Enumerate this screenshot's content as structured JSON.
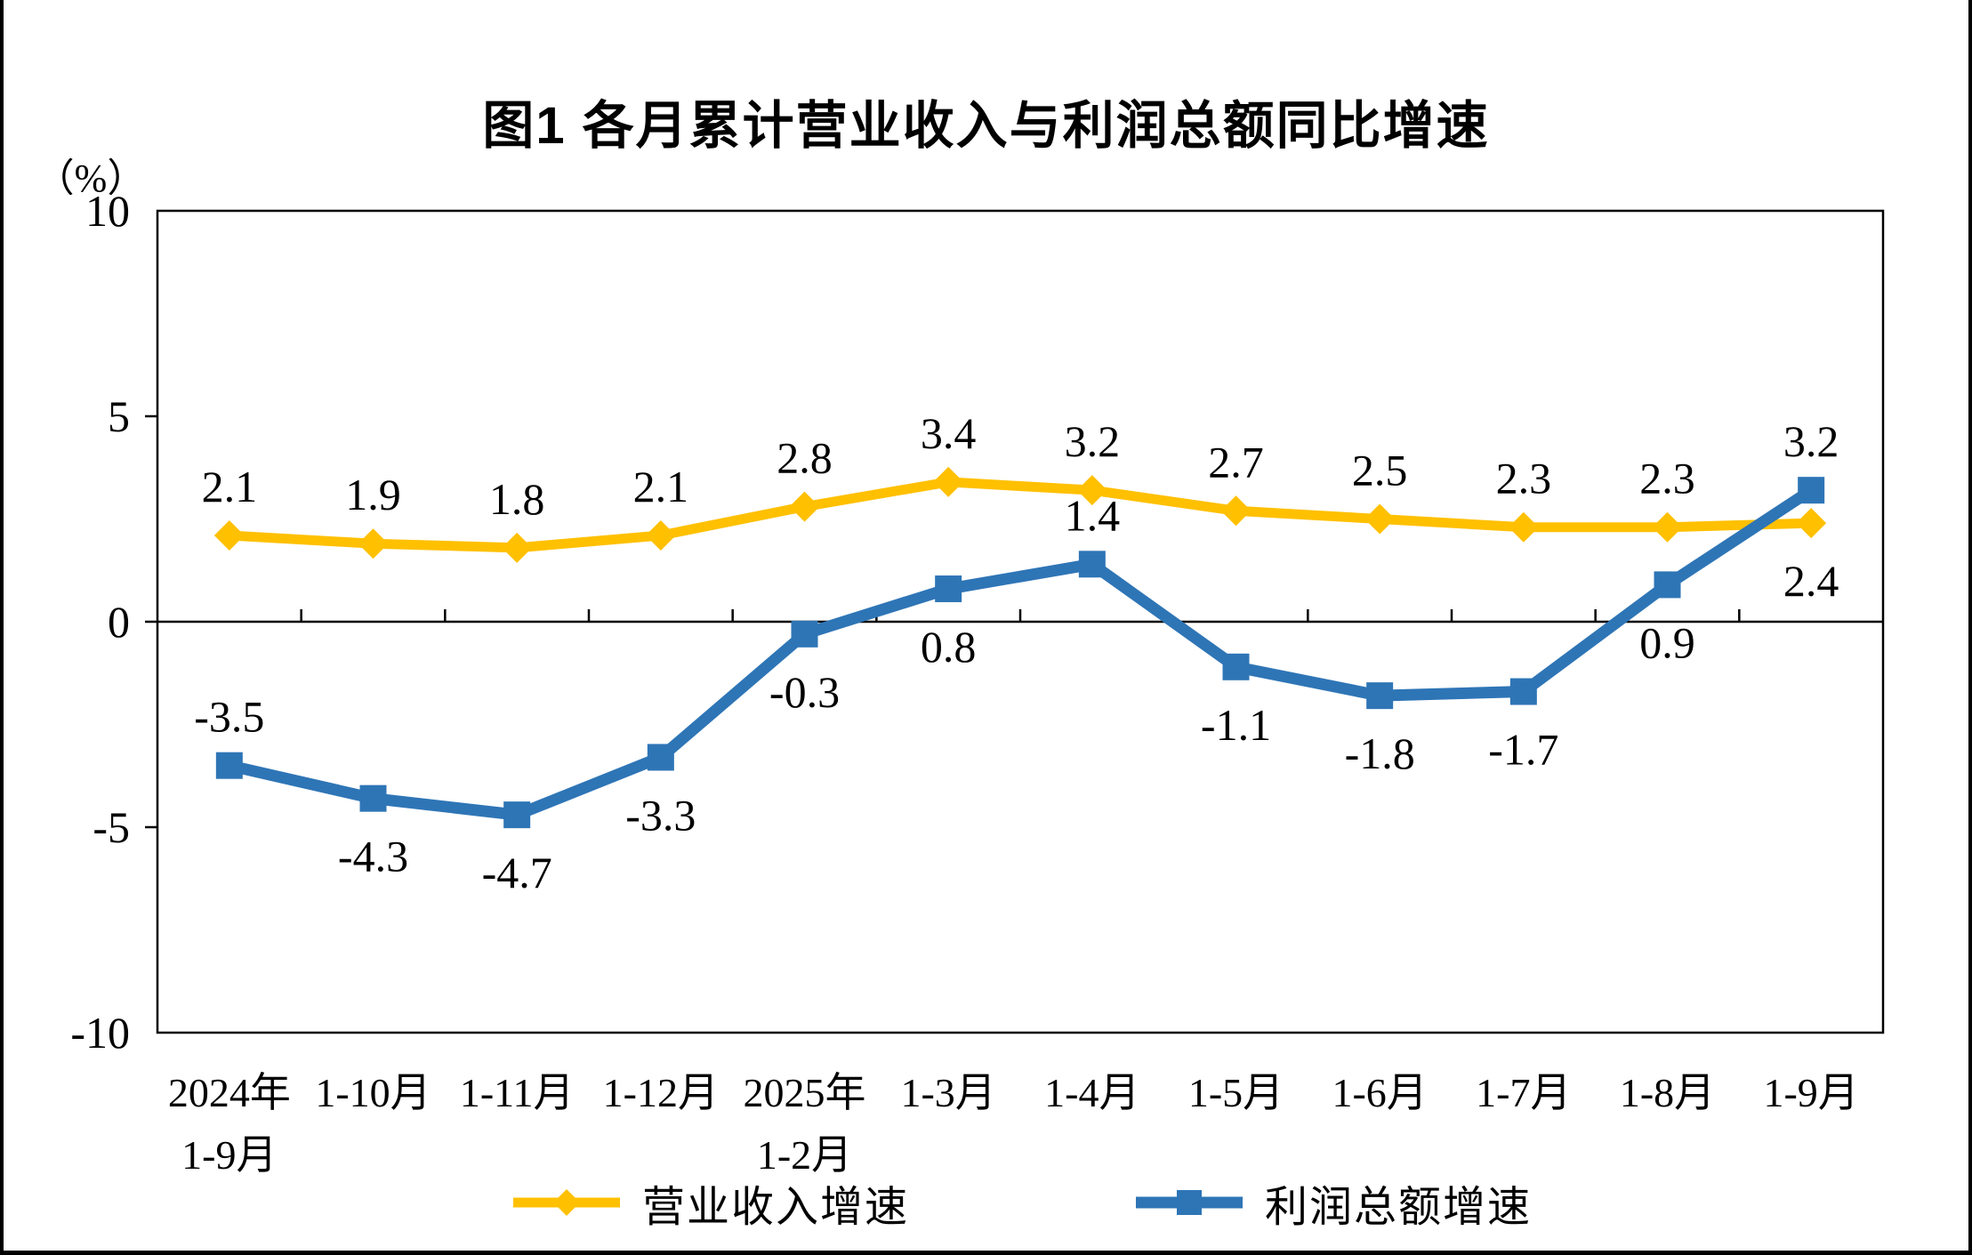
{
  "figure": {
    "title": "图1  各月累计营业收入与利润总额同比增速",
    "y_axis": {
      "unit_label": "（%）",
      "ticks": [
        "10",
        "5",
        "0",
        "-5",
        "-10"
      ],
      "tick_values": [
        10,
        5,
        0,
        -5,
        -10
      ]
    }
  },
  "chart_data": {
    "type": "line",
    "title": "图1  各月累计营业收入与利润总额同比增速",
    "xlabel": "",
    "ylabel": "（%）",
    "ylim": [
      -10,
      10
    ],
    "y_tick_step": 5,
    "grid": false,
    "legend_position": "bottom",
    "categories": [
      "2024年\n1-9月",
      "1-10月",
      "1-11月",
      "1-12月",
      "2025年\n1-2月",
      "1-3月",
      "1-4月",
      "1-5月",
      "1-6月",
      "1-7月",
      "1-8月",
      "1-9月"
    ],
    "series": [
      {
        "name": "营业收入增速",
        "color": "#FFC000",
        "marker": "diamond",
        "values": [
          2.1,
          1.9,
          1.8,
          2.1,
          2.8,
          3.4,
          3.2,
          2.7,
          2.5,
          2.3,
          2.3,
          2.4
        ],
        "label_positions": [
          "above",
          "above",
          "above",
          "above",
          "above",
          "above",
          "above",
          "above",
          "above",
          "above",
          "above",
          "below"
        ]
      },
      {
        "name": "利润总额增速",
        "color": "#2E75B6",
        "marker": "square",
        "values": [
          -3.5,
          -4.3,
          -4.7,
          -3.3,
          -0.3,
          0.8,
          1.4,
          -1.1,
          -1.8,
          -1.7,
          0.9,
          3.2
        ],
        "label_positions": [
          "above",
          "below",
          "below",
          "below",
          "below",
          "below",
          "above",
          "below",
          "below",
          "below",
          "below",
          "above"
        ]
      }
    ],
    "axis_color": "#000000",
    "background_color": "#FFFFFF"
  }
}
